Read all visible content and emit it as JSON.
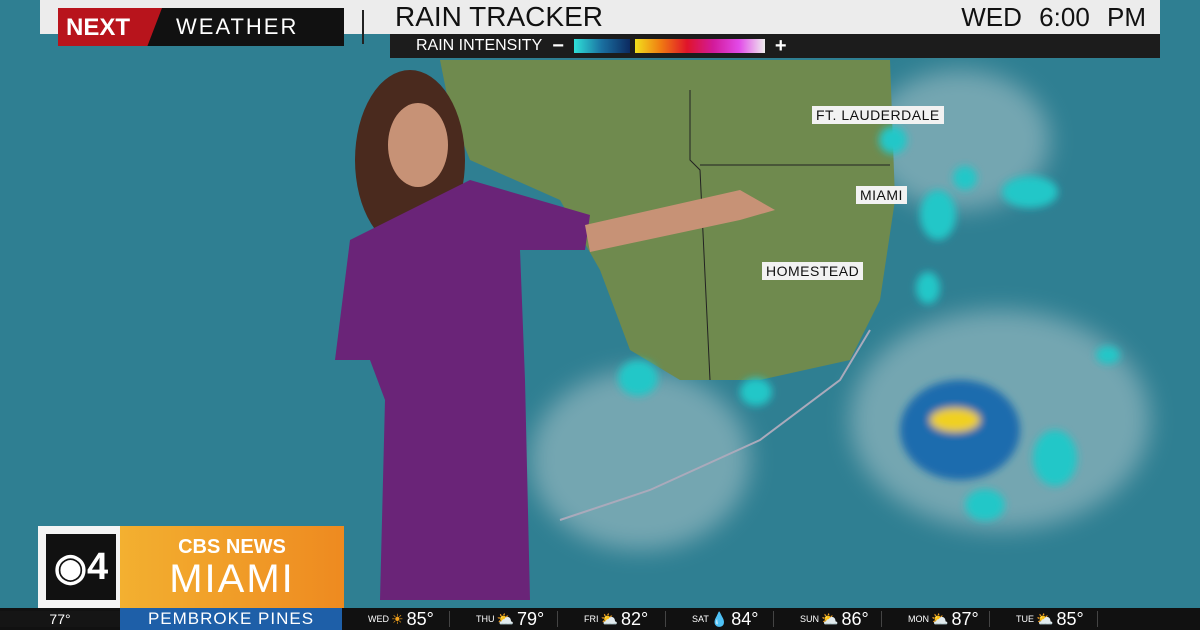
{
  "header": {
    "brand_next": "NEXT",
    "brand_weather": "WEATHER",
    "title": "RAIN TRACKER",
    "day": "WED",
    "time": "6:00 PM",
    "intensity_label": "RAIN INTENSITY",
    "minus": "−",
    "plus": "+"
  },
  "map_labels": [
    "FT. LAUDERDALE",
    "MIAMI",
    "HOMESTEAD"
  ],
  "station": {
    "channel": "4",
    "network": "CBS NEWS",
    "city": "MIAMI"
  },
  "ticker": {
    "current_temp": "77°",
    "location": "PEMBROKE PINES",
    "forecast": [
      {
        "day": "WED",
        "icon": "sun-icon",
        "glyph": "☀",
        "temp": "85°"
      },
      {
        "day": "THU",
        "icon": "partly-cloudy-icon",
        "glyph": "⛅",
        "temp": "79°"
      },
      {
        "day": "FRI",
        "icon": "partly-cloudy-icon",
        "glyph": "⛅",
        "temp": "82°"
      },
      {
        "day": "SAT",
        "icon": "rain-icon",
        "glyph": "💧",
        "temp": "84°"
      },
      {
        "day": "SUN",
        "icon": "partly-cloudy-icon",
        "glyph": "⛅",
        "temp": "86°"
      },
      {
        "day": "MON",
        "icon": "partly-cloudy-icon",
        "glyph": "⛅",
        "temp": "87°"
      },
      {
        "day": "TUE",
        "icon": "partly-cloudy-icon",
        "glyph": "⛅",
        "temp": "85°"
      }
    ]
  },
  "colors": {
    "ocean": "#2f7f92",
    "land": "#6f8a4e",
    "accent_red": "#b8141c",
    "orange": "#ee8a20",
    "ticker_blue": "#1e5fa8",
    "dress": "#6a2478"
  }
}
